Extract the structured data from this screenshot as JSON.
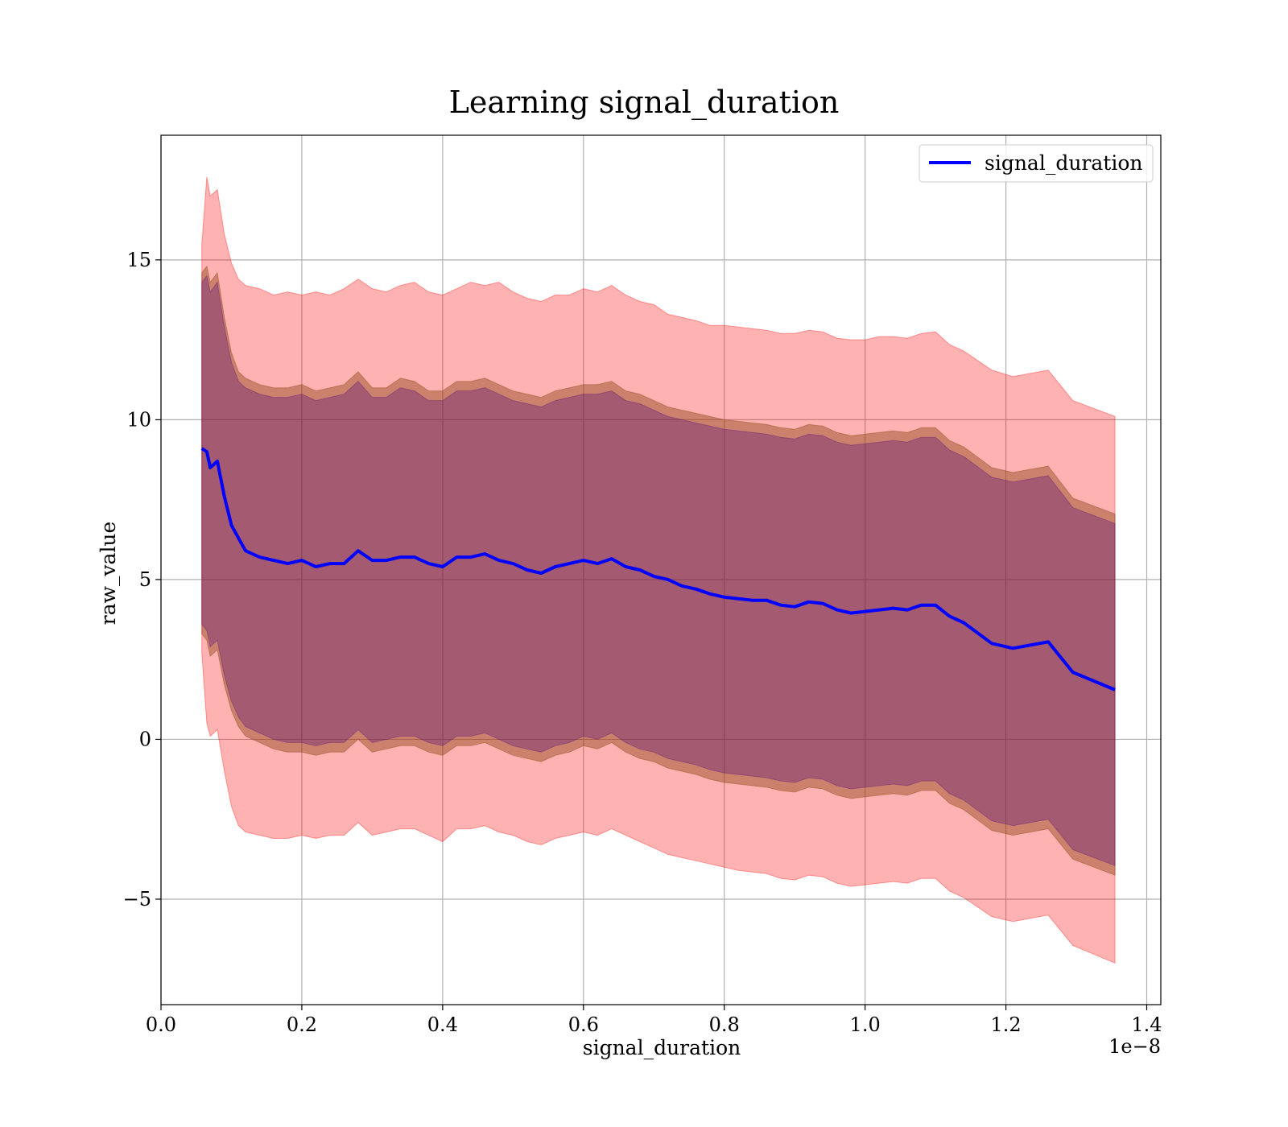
{
  "chart_data": {
    "type": "line",
    "title": "Learning signal_duration",
    "xlabel": "signal_duration",
    "ylabel": "raw_value",
    "x_offset_label": "1e−8",
    "xlim": [
      0.0,
      1.42
    ],
    "ylim": [
      -8.3,
      18.9
    ],
    "x_ticks": [
      0.0,
      0.2,
      0.4,
      0.6,
      0.8,
      1.0,
      1.2,
      1.4
    ],
    "x_tick_labels": [
      "0.0",
      "0.2",
      "0.4",
      "0.6",
      "0.8",
      "1.0",
      "1.2",
      "1.4"
    ],
    "y_ticks": [
      -5,
      0,
      5,
      10,
      15
    ],
    "y_tick_labels": [
      "−5",
      "0",
      "5",
      "10",
      "15"
    ],
    "grid": true,
    "legend": {
      "position": "top-right",
      "entries": [
        "signal_duration"
      ]
    },
    "colors": {
      "line": "#0000ff",
      "outer_band": "#ff0000",
      "inner_band_a": "#8b4513",
      "inner_band_b": "#4b0082"
    },
    "x": [
      0.058,
      0.065,
      0.07,
      0.08,
      0.09,
      0.1,
      0.11,
      0.12,
      0.14,
      0.16,
      0.18,
      0.2,
      0.22,
      0.24,
      0.26,
      0.28,
      0.3,
      0.32,
      0.34,
      0.36,
      0.38,
      0.4,
      0.42,
      0.44,
      0.46,
      0.48,
      0.5,
      0.52,
      0.54,
      0.56,
      0.58,
      0.6,
      0.62,
      0.64,
      0.66,
      0.68,
      0.7,
      0.72,
      0.74,
      0.76,
      0.78,
      0.8,
      0.82,
      0.84,
      0.86,
      0.88,
      0.9,
      0.92,
      0.94,
      0.96,
      0.98,
      1.0,
      1.02,
      1.04,
      1.06,
      1.08,
      1.1,
      1.12,
      1.14,
      1.18,
      1.21,
      1.26,
      1.295,
      1.355
    ],
    "mean": [
      9.1,
      9.0,
      8.5,
      8.7,
      7.6,
      6.7,
      6.3,
      5.9,
      5.7,
      5.6,
      5.5,
      5.6,
      5.4,
      5.5,
      5.5,
      5.9,
      5.6,
      5.6,
      5.7,
      5.7,
      5.5,
      5.4,
      5.7,
      5.7,
      5.8,
      5.6,
      5.5,
      5.3,
      5.2,
      5.4,
      5.5,
      5.6,
      5.5,
      5.65,
      5.4,
      5.3,
      5.1,
      5.0,
      4.8,
      4.7,
      4.55,
      4.45,
      4.4,
      4.35,
      4.35,
      4.2,
      4.15,
      4.3,
      4.25,
      4.05,
      3.95,
      4.0,
      4.05,
      4.1,
      4.05,
      4.2,
      4.2,
      3.85,
      3.65,
      3.0,
      2.85,
      3.05,
      2.1,
      1.55
    ],
    "outer_upper": [
      15.5,
      17.6,
      17.0,
      17.2,
      15.8,
      14.9,
      14.4,
      14.2,
      14.1,
      13.9,
      14.0,
      13.9,
      14.0,
      13.9,
      14.1,
      14.4,
      14.1,
      14.0,
      14.2,
      14.3,
      14.0,
      13.9,
      14.1,
      14.3,
      14.2,
      14.3,
      14.0,
      13.8,
      13.7,
      13.9,
      13.9,
      14.1,
      14.0,
      14.2,
      13.9,
      13.7,
      13.6,
      13.3,
      13.2,
      13.1,
      12.95,
      12.95,
      12.9,
      12.85,
      12.8,
      12.7,
      12.7,
      12.8,
      12.75,
      12.55,
      12.5,
      12.5,
      12.6,
      12.6,
      12.55,
      12.7,
      12.75,
      12.35,
      12.15,
      11.55,
      11.35,
      11.55,
      10.6,
      10.1
    ],
    "inner_upper": [
      14.6,
      14.8,
      14.3,
      14.6,
      13.2,
      12.1,
      11.5,
      11.3,
      11.1,
      11.0,
      11.0,
      11.1,
      10.9,
      11.0,
      11.1,
      11.5,
      11.0,
      11.0,
      11.3,
      11.2,
      10.9,
      10.9,
      11.2,
      11.2,
      11.3,
      11.1,
      10.9,
      10.8,
      10.7,
      10.9,
      11.0,
      11.1,
      11.1,
      11.2,
      10.9,
      10.8,
      10.6,
      10.4,
      10.3,
      10.2,
      10.1,
      10.0,
      9.95,
      9.9,
      9.85,
      9.75,
      9.7,
      9.85,
      9.8,
      9.6,
      9.5,
      9.55,
      9.6,
      9.65,
      9.6,
      9.75,
      9.75,
      9.35,
      9.15,
      8.5,
      8.35,
      8.55,
      7.55,
      7.05
    ],
    "inner_lower": [
      3.6,
      3.4,
      2.9,
      3.1,
      2.0,
      1.2,
      0.7,
      0.4,
      0.2,
      0.0,
      -0.1,
      -0.1,
      -0.2,
      -0.1,
      -0.1,
      0.3,
      -0.1,
      0.0,
      0.1,
      0.1,
      -0.1,
      -0.2,
      0.1,
      0.1,
      0.2,
      0.0,
      -0.2,
      -0.3,
      -0.4,
      -0.2,
      -0.1,
      0.1,
      0.0,
      0.2,
      -0.1,
      -0.3,
      -0.4,
      -0.6,
      -0.7,
      -0.8,
      -0.95,
      -1.05,
      -1.1,
      -1.15,
      -1.2,
      -1.3,
      -1.35,
      -1.2,
      -1.25,
      -1.45,
      -1.55,
      -1.5,
      -1.45,
      -1.4,
      -1.45,
      -1.3,
      -1.3,
      -1.7,
      -1.9,
      -2.55,
      -2.7,
      -2.5,
      -3.45,
      -3.95
    ],
    "outer_lower": [
      2.7,
      0.5,
      0.1,
      0.3,
      -1.0,
      -2.1,
      -2.7,
      -2.9,
      -3.0,
      -3.1,
      -3.1,
      -3.0,
      -3.1,
      -3.0,
      -3.0,
      -2.6,
      -3.0,
      -2.9,
      -2.8,
      -2.8,
      -3.0,
      -3.2,
      -2.8,
      -2.8,
      -2.7,
      -2.9,
      -3.0,
      -3.2,
      -3.3,
      -3.1,
      -3.0,
      -2.9,
      -3.0,
      -2.8,
      -3.0,
      -3.2,
      -3.4,
      -3.6,
      -3.7,
      -3.8,
      -3.9,
      -4.0,
      -4.1,
      -4.15,
      -4.2,
      -4.35,
      -4.4,
      -4.25,
      -4.3,
      -4.5,
      -4.6,
      -4.55,
      -4.5,
      -4.45,
      -4.5,
      -4.35,
      -4.35,
      -4.75,
      -4.95,
      -5.55,
      -5.7,
      -5.5,
      -6.45,
      -7.0
    ]
  }
}
